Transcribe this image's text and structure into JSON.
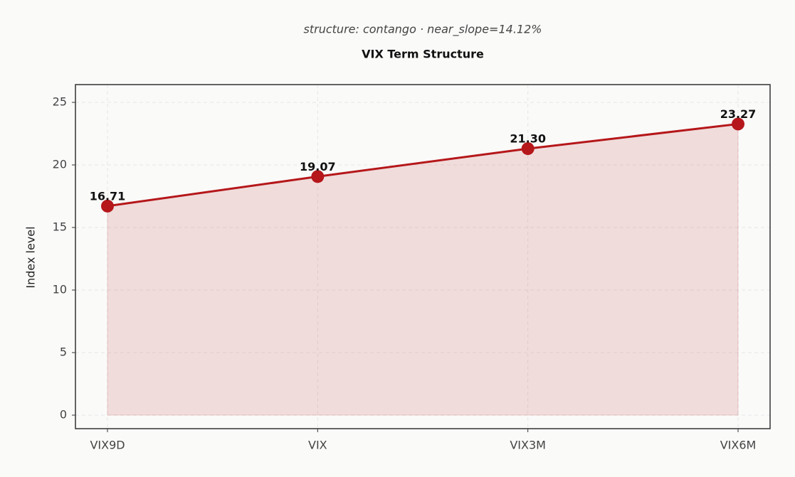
{
  "chart_data": {
    "type": "line",
    "title": "VIX Term Structure",
    "subtitle": "structure: contango · near_slope=14.12%",
    "y_label": "Index level",
    "categories": [
      "VIX9D",
      "VIX",
      "VIX3M",
      "VIX6M"
    ],
    "values": [
      16.71,
      19.07,
      21.3,
      23.27
    ],
    "value_labels": [
      "16.71",
      "19.07",
      "21.30",
      "23.27"
    ],
    "color": "#b5171a",
    "ylim": [
      -1.08,
      26.42
    ],
    "yticks": [
      0,
      5,
      10,
      15,
      20,
      25
    ],
    "grid": true
  }
}
